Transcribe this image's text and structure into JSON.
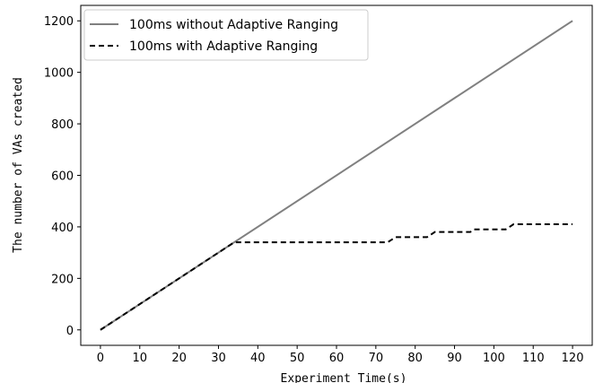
{
  "chart_data": {
    "type": "line",
    "title": "",
    "xlabel": "Experiment Time(s)",
    "ylabel": "The number of VAs created",
    "xlim": [
      -5,
      125
    ],
    "ylim": [
      -60,
      1260
    ],
    "xticks": [
      0,
      10,
      20,
      30,
      40,
      50,
      60,
      70,
      80,
      90,
      100,
      110,
      120
    ],
    "yticks": [
      0,
      200,
      400,
      600,
      800,
      1000,
      1200
    ],
    "grid": false,
    "legend_position": "top-left",
    "series": [
      {
        "name": "100ms without Adaptive Ranging",
        "color": "#808080",
        "style": "solid",
        "x": [
          0,
          120
        ],
        "y": [
          0,
          1200
        ]
      },
      {
        "name": "100ms with Adaptive Ranging",
        "color": "#000000",
        "style": "dashed",
        "x": [
          0,
          34,
          73,
          75,
          83,
          85,
          94,
          95,
          103,
          105,
          120
        ],
        "y": [
          0,
          340,
          340,
          360,
          360,
          380,
          380,
          390,
          390,
          410,
          410
        ]
      }
    ]
  }
}
